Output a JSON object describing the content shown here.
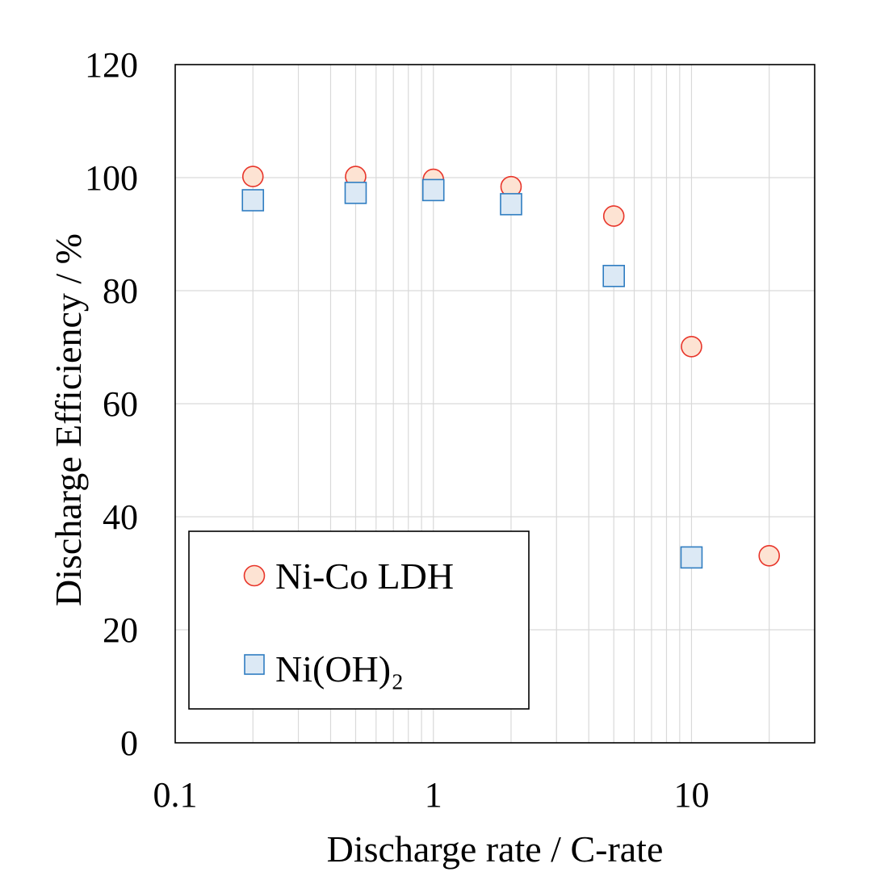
{
  "chart_data": {
    "type": "scatter",
    "title": "",
    "xlabel": "Discharge rate / C-rate",
    "ylabel": "Discharge Efficiency / %",
    "x_scale": "log",
    "xlim": [
      0.1,
      30
    ],
    "ylim": [
      0,
      120
    ],
    "x_ticks": [
      {
        "value": 0.1,
        "label": "0.1"
      },
      {
        "value": 1,
        "label": "1"
      },
      {
        "value": 10,
        "label": "10"
      }
    ],
    "y_ticks": [
      {
        "value": 0,
        "label": "0"
      },
      {
        "value": 20,
        "label": "20"
      },
      {
        "value": 40,
        "label": "40"
      },
      {
        "value": 60,
        "label": "60"
      },
      {
        "value": 80,
        "label": "80"
      },
      {
        "value": 100,
        "label": "100"
      },
      {
        "value": 120,
        "label": "120"
      }
    ],
    "grid": true,
    "legend_position": "bottom-left",
    "series": [
      {
        "name": "Ni-Co LDH",
        "marker": "circle",
        "fill": "#fde3d3",
        "stroke": "#e8352a",
        "x": [
          0.2,
          0.5,
          1,
          2,
          5,
          10,
          20
        ],
        "y": [
          100.2,
          100.2,
          99.7,
          98.4,
          93.2,
          70.1,
          33.1
        ]
      },
      {
        "name": "Ni(OH)₂",
        "marker": "square",
        "fill": "#dce9f5",
        "stroke": "#2f7dc1",
        "x": [
          0.2,
          0.5,
          1,
          2,
          5,
          10
        ],
        "y": [
          96.0,
          97.3,
          97.8,
          95.3,
          82.6,
          32.8
        ]
      }
    ]
  }
}
